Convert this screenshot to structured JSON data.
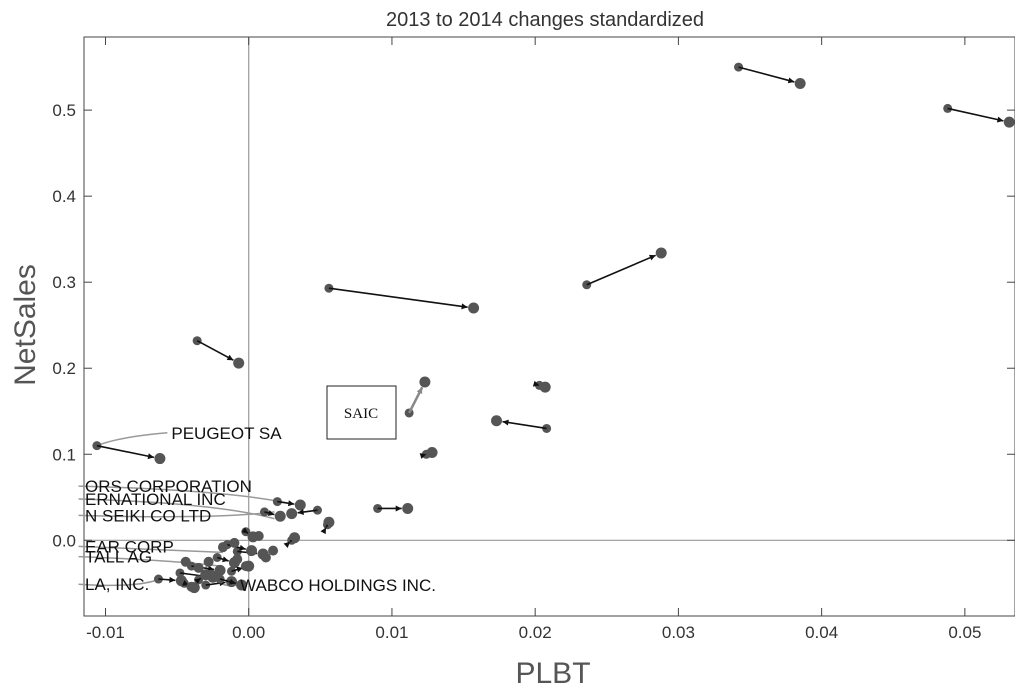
{
  "chart_data": {
    "type": "scatter",
    "title": "2013 to 2014 changes standardized",
    "xlabel": "PLBT",
    "ylabel": "NetSales",
    "xlim": [
      -0.0115,
      0.0535
    ],
    "ylim": [
      -0.088,
      0.585
    ],
    "xticks": [
      -0.01,
      0.0,
      0.01,
      0.02,
      0.03,
      0.04,
      0.05
    ],
    "xtick_labels": [
      "-0.01",
      "0.00",
      "0.01",
      "0.02",
      "0.03",
      "0.04",
      "0.05"
    ],
    "yticks": [
      0.0,
      0.1,
      0.2,
      0.3,
      0.4,
      0.5
    ],
    "ytick_labels": [
      "0.0",
      "0.1",
      "0.2",
      "0.3",
      "0.4",
      "0.5"
    ],
    "grid": false,
    "colors": {
      "point": "#555555",
      "arrow": "#111111",
      "highlight_arrow": "#888888",
      "axis": "#999999"
    },
    "arrows": [
      {
        "from": [
          0.0342,
          0.55
        ],
        "to": [
          0.0385,
          0.531
        ]
      },
      {
        "from": [
          0.0488,
          0.502
        ],
        "to": [
          0.0531,
          0.486
        ]
      },
      {
        "from": [
          0.0056,
          0.293
        ],
        "to": [
          0.0157,
          0.27
        ]
      },
      {
        "from": [
          0.0236,
          0.297
        ],
        "to": [
          0.0288,
          0.334
        ]
      },
      {
        "from": [
          -0.0036,
          0.232
        ],
        "to": [
          -0.0007,
          0.206
        ]
      },
      {
        "from": [
          0.0208,
          0.13
        ],
        "to": [
          0.0173,
          0.139
        ]
      },
      {
        "from": [
          -0.0106,
          0.11
        ],
        "to": [
          -0.0062,
          0.095
        ]
      },
      {
        "from": [
          0.0112,
          0.148
        ],
        "to": [
          0.0123,
          0.184
        ],
        "highlight": true
      },
      {
        "from": [
          0.0203,
          0.18
        ],
        "to": [
          0.0207,
          0.178
        ]
      },
      {
        "from": [
          0.0124,
          0.1
        ],
        "to": [
          0.0128,
          0.102
        ]
      },
      {
        "from": [
          0.009,
          0.037
        ],
        "to": [
          0.0111,
          0.037
        ]
      },
      {
        "from": [
          0.002,
          0.045
        ],
        "to": [
          0.0036,
          0.041
        ]
      },
      {
        "from": [
          0.0048,
          0.035
        ],
        "to": [
          0.003,
          0.031
        ]
      },
      {
        "from": [
          0.0055,
          0.018
        ],
        "to": [
          0.0056,
          0.021
        ]
      },
      {
        "from": [
          0.0011,
          0.033
        ],
        "to": [
          0.0022,
          0.028
        ]
      },
      {
        "from": [
          -0.0002,
          0.01
        ],
        "to": [
          0.0003,
          0.004
        ]
      },
      {
        "from": [
          0.003,
          0.0
        ],
        "to": [
          0.0032,
          0.003
        ]
      },
      {
        "from": [
          -0.0048,
          -0.038
        ],
        "to": [
          -0.0025,
          -0.043
        ]
      },
      {
        "from": [
          -0.0063,
          -0.045
        ],
        "to": [
          -0.0047,
          -0.047
        ]
      },
      {
        "from": [
          -0.0008,
          -0.013
        ],
        "to": [
          0.001,
          -0.016
        ]
      },
      {
        "from": [
          -0.0022,
          -0.02
        ],
        "to": [
          -0.001,
          -0.026
        ]
      },
      {
        "from": [
          -0.004,
          -0.03
        ],
        "to": [
          -0.002,
          -0.035
        ]
      },
      {
        "from": [
          -0.003,
          -0.052
        ],
        "to": [
          -0.0012,
          -0.048
        ]
      },
      {
        "from": [
          -0.0015,
          -0.005
        ],
        "to": [
          0.0002,
          -0.012
        ]
      },
      {
        "from": [
          -0.0035,
          -0.046
        ],
        "to": [
          -0.003,
          -0.04
        ]
      },
      {
        "from": [
          -0.0012,
          -0.036
        ],
        "to": [
          0.0,
          -0.03
        ]
      },
      {
        "from": [
          -0.0045,
          -0.05
        ],
        "to": [
          -0.0038,
          -0.055
        ]
      },
      {
        "from": [
          -0.002,
          -0.045
        ],
        "to": [
          -0.0005,
          -0.052
        ]
      }
    ],
    "points": [
      [
        0.0007,
        0.005
      ],
      [
        -0.0018,
        -0.008
      ],
      [
        -0.0028,
        -0.025
      ],
      [
        0.0012,
        -0.02
      ],
      [
        -0.0044,
        -0.025
      ],
      [
        -0.0026,
        -0.04
      ],
      [
        -0.0008,
        -0.022
      ],
      [
        -0.004,
        -0.054
      ],
      [
        -0.0002,
        -0.03
      ],
      [
        0.0017,
        -0.012
      ],
      [
        -0.0035,
        -0.032
      ],
      [
        -0.001,
        -0.003
      ]
    ],
    "annotations": [
      {
        "text": "PEUGEOT SA",
        "x": -0.0054,
        "y": 0.118,
        "point": [
          -0.0106,
          0.11
        ]
      },
      {
        "text": "ORS CORPORATION",
        "x": -0.0116,
        "y": 0.056,
        "point": [
          0.0028,
          0.043
        ]
      },
      {
        "text": "ERNATIONAL INC",
        "x": -0.0116,
        "y": 0.041,
        "point": [
          0.0018,
          0.025
        ],
        "color": "#9a9a9a"
      },
      {
        "text": "N SEIKI CO LTD",
        "x": -0.0116,
        "y": 0.022,
        "point": [
          0.0018,
          0.033
        ]
      },
      {
        "text": "EAR CORP",
        "x": -0.0116,
        "y": -0.014,
        "point": [
          -0.0018,
          -0.014
        ]
      },
      {
        "text": "TALL AG",
        "x": -0.0116,
        "y": -0.026,
        "point": [
          -0.002,
          -0.03
        ],
        "color": "#bdbdbd"
      },
      {
        "text": "LA, INC.",
        "x": -0.0116,
        "y": -0.058,
        "point": [
          -0.0062,
          -0.045
        ]
      },
      {
        "text": "WABCO HOLDINGS INC.",
        "x": -0.0006,
        "y": -0.059,
        "point": [
          -0.003,
          -0.03
        ]
      }
    ],
    "boxed_label": {
      "text": "SAIC"
    }
  }
}
